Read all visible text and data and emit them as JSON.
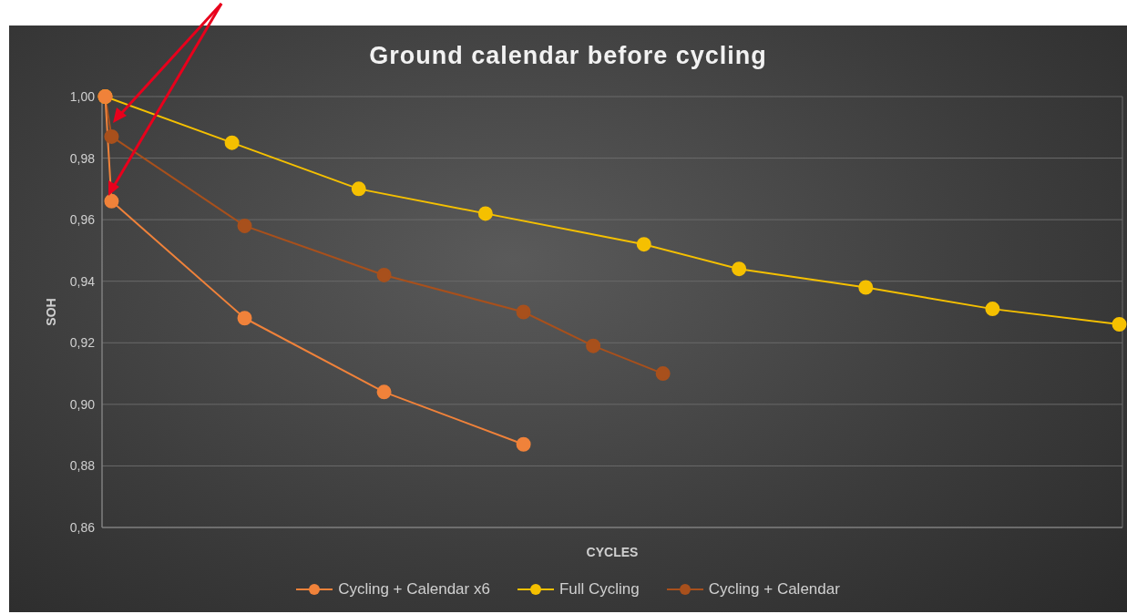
{
  "chart_data": {
    "type": "line",
    "title": "Ground calendar before cycling",
    "xlabel": "CYCLES",
    "ylabel": "SOH",
    "categories": [
      null,
      null,
      null,
      null,
      null,
      null,
      null,
      null,
      null,
      null,
      null,
      null,
      null,
      null,
      null,
      null,
      null,
      null,
      null,
      null,
      null,
      null,
      null,
      null,
      null,
      null,
      null,
      null,
      null,
      null,
      null,
      null,
      null,
      null,
      null,
      null,
      null,
      null,
      null,
      null,
      null,
      null,
      null,
      null,
      null,
      null,
      null,
      null,
      null,
      null,
      null,
      null,
      null,
      null,
      null,
      null,
      null,
      null,
      null,
      null,
      null,
      null,
      null,
      null,
      null,
      null,
      null,
      null,
      null,
      null,
      null,
      null,
      null,
      null,
      null,
      null,
      null,
      null,
      null,
      null,
      null,
      null,
      null,
      null,
      null,
      null,
      null,
      null,
      null,
      null,
      null,
      null,
      null,
      null,
      null,
      null,
      null,
      null,
      null,
      null,
      null,
      null,
      null,
      null,
      null,
      null,
      null,
      null,
      null,
      null,
      null,
      null,
      null,
      null,
      null,
      null,
      null,
      null,
      null,
      null,
      null,
      null,
      null,
      null,
      null,
      null,
      null,
      null,
      null,
      null,
      null,
      null,
      null,
      null,
      null,
      null,
      null,
      null,
      null,
      null,
      null,
      null,
      null,
      null,
      null,
      null,
      null,
      null,
      null,
      null,
      null,
      null,
      null,
      null,
      null,
      null,
      null,
      null,
      null,
      null,
      null
    ],
    "ylim": [
      0.86,
      1.0
    ],
    "yticks": [
      {
        "value": 0.86,
        "label": "0,86"
      },
      {
        "value": 0.88,
        "label": "0,88"
      },
      {
        "value": 0.9,
        "label": "0,90"
      },
      {
        "value": 0.92,
        "label": "0,92"
      },
      {
        "value": 0.94,
        "label": "0,94"
      },
      {
        "value": 0.96,
        "label": "0,96"
      },
      {
        "value": 0.98,
        "label": "0,98"
      },
      {
        "value": 1.0,
        "label": "1,00"
      }
    ],
    "grid": true,
    "legend": "bottom",
    "marker": "circle",
    "line_style": "solid",
    "series": [
      {
        "name": "Cycling + Calendar x6",
        "color": "#f0823a",
        "values": [
          1.0,
          0.966,
          null,
          null,
          null,
          null,
          null,
          null,
          null,
          null,
          null,
          null,
          null,
          null,
          null,
          null,
          null,
          null,
          null,
          null,
          null,
          null,
          0.928,
          null,
          null,
          null,
          null,
          null,
          null,
          null,
          null,
          null,
          null,
          null,
          null,
          null,
          null,
          null,
          null,
          null,
          null,
          null,
          null,
          null,
          0.904,
          null,
          null,
          null,
          null,
          null,
          null,
          null,
          null,
          null,
          null,
          null,
          null,
          null,
          null,
          null,
          null,
          null,
          null,
          null,
          null,
          null,
          0.887,
          null,
          null,
          null,
          null,
          null,
          null,
          null,
          null,
          null,
          null,
          null,
          null,
          null,
          null,
          null,
          null,
          null,
          null,
          null,
          null,
          null,
          null,
          null,
          null,
          null,
          null,
          null,
          null,
          null,
          null,
          null,
          null,
          null,
          null,
          null,
          null,
          null,
          null,
          null,
          null,
          null,
          null,
          null,
          null,
          null,
          null,
          null,
          null,
          null,
          null,
          null,
          null,
          null,
          null,
          null,
          null,
          null,
          null,
          null,
          null,
          null,
          null,
          null,
          null,
          null,
          null,
          null,
          null,
          null,
          null,
          null,
          null,
          null,
          null,
          null,
          null,
          null,
          null,
          null,
          null,
          null,
          null,
          null,
          null,
          null,
          null,
          null,
          null,
          null,
          null,
          null,
          null,
          null,
          null
        ]
      },
      {
        "name": "Full Cycling",
        "color": "#f5c000",
        "values": [
          1.0,
          null,
          null,
          null,
          null,
          null,
          null,
          null,
          null,
          null,
          null,
          null,
          null,
          null,
          null,
          null,
          null,
          null,
          null,
          null,
          0.985,
          null,
          null,
          null,
          null,
          null,
          null,
          null,
          null,
          null,
          null,
          null,
          null,
          null,
          null,
          null,
          null,
          null,
          null,
          null,
          0.97,
          null,
          null,
          null,
          null,
          null,
          null,
          null,
          null,
          null,
          null,
          null,
          null,
          null,
          null,
          null,
          null,
          null,
          null,
          null,
          0.962,
          null,
          null,
          null,
          null,
          null,
          null,
          null,
          null,
          null,
          null,
          null,
          null,
          null,
          null,
          null,
          null,
          null,
          null,
          null,
          null,
          null,
          null,
          null,
          null,
          0.952,
          null,
          null,
          null,
          null,
          null,
          null,
          null,
          null,
          null,
          null,
          null,
          null,
          null,
          null,
          0.944,
          null,
          null,
          null,
          null,
          null,
          null,
          null,
          null,
          null,
          null,
          null,
          null,
          null,
          null,
          null,
          null,
          null,
          null,
          null,
          0.938,
          null,
          null,
          null,
          null,
          null,
          null,
          null,
          null,
          null,
          null,
          null,
          null,
          null,
          null,
          null,
          null,
          null,
          null,
          null,
          0.931,
          null,
          null,
          null,
          null,
          null,
          null,
          null,
          null,
          null,
          null,
          null,
          null,
          null,
          null,
          null,
          null,
          null,
          null,
          null,
          0.926
        ]
      },
      {
        "name": "Cycling + Calendar",
        "color": "#a8501c",
        "values": [
          1.0,
          0.987,
          null,
          null,
          null,
          null,
          null,
          null,
          null,
          null,
          null,
          null,
          null,
          null,
          null,
          null,
          null,
          null,
          null,
          null,
          null,
          null,
          0.958,
          null,
          null,
          null,
          null,
          null,
          null,
          null,
          null,
          null,
          null,
          null,
          null,
          null,
          null,
          null,
          null,
          null,
          null,
          null,
          null,
          null,
          0.942,
          null,
          null,
          null,
          null,
          null,
          null,
          null,
          null,
          null,
          null,
          null,
          null,
          null,
          null,
          null,
          null,
          null,
          null,
          null,
          null,
          null,
          0.93,
          null,
          null,
          null,
          null,
          null,
          null,
          null,
          null,
          null,
          null,
          0.919,
          null,
          null,
          null,
          null,
          null,
          null,
          null,
          null,
          null,
          null,
          0.91,
          null,
          null,
          null,
          null,
          null,
          null,
          null,
          null,
          null,
          null,
          null,
          null,
          null,
          null,
          null,
          null,
          null,
          null,
          null,
          null,
          null,
          null,
          null,
          null,
          null,
          null,
          null,
          null,
          null,
          null,
          null,
          null,
          null,
          null,
          null,
          null,
          null,
          null,
          null,
          null,
          null,
          null,
          null,
          null,
          null,
          null,
          null,
          null,
          null,
          null,
          null,
          null,
          null,
          null,
          null,
          null,
          null,
          null,
          null,
          null,
          null,
          null,
          null,
          null,
          null,
          null,
          null,
          null,
          null,
          null,
          null,
          null
        ]
      }
    ]
  }
}
